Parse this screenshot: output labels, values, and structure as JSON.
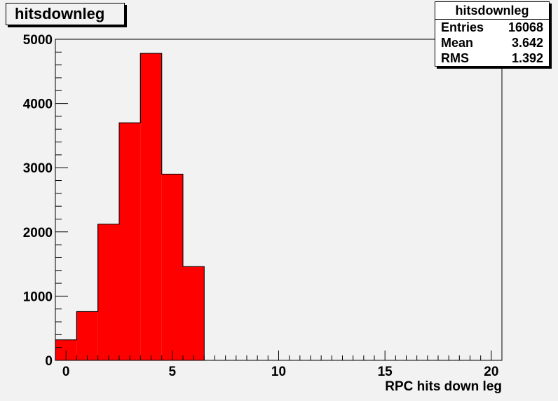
{
  "title": "hitsdownleg",
  "stats": {
    "name": "hitsdownleg",
    "rows": [
      {
        "label": "Entries",
        "value": "16068"
      },
      {
        "label": "Mean",
        "value": "3.642"
      },
      {
        "label": "RMS",
        "value": "1.392"
      }
    ]
  },
  "chart_data": {
    "type": "bar",
    "xlabel": "RPC hits down leg",
    "ylabel": "",
    "xlim": [
      -0.5,
      20.5
    ],
    "ylim": [
      0,
      5000
    ],
    "x_ticks": [
      0,
      5,
      10,
      15,
      20
    ],
    "y_ticks": [
      0,
      1000,
      2000,
      3000,
      4000,
      5000
    ],
    "bin_width": 1,
    "bins": [
      {
        "x": 0,
        "value": 320
      },
      {
        "x": 1,
        "value": 760
      },
      {
        "x": 2,
        "value": 2120
      },
      {
        "x": 3,
        "value": 3700
      },
      {
        "x": 4,
        "value": 4780
      },
      {
        "x": 5,
        "value": 2900
      },
      {
        "x": 6,
        "value": 1460
      }
    ],
    "fill_color": "#ff0000",
    "line_color": "#000000",
    "grid": false
  }
}
